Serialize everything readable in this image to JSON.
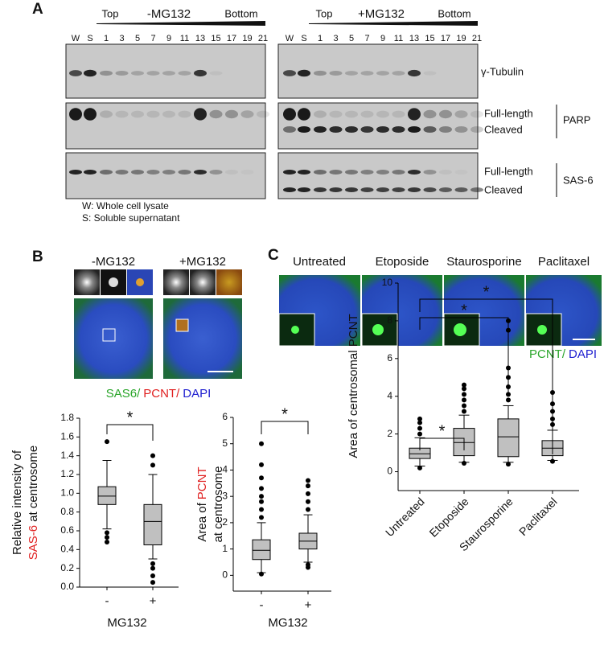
{
  "panel_a": {
    "label": "A",
    "left": {
      "top": "Top",
      "title": "-MG132",
      "bottom": "Bottom",
      "lanes": [
        "W",
        "S",
        "1",
        "3",
        "5",
        "7",
        "9",
        "11",
        "13",
        "15",
        "17",
        "19",
        "21"
      ]
    },
    "right": {
      "top": "Top",
      "title": "+MG132",
      "bottom": "Bottom",
      "lanes": [
        "W",
        "S",
        "1",
        "3",
        "5",
        "7",
        "9",
        "11",
        "13",
        "15",
        "17",
        "19",
        "21"
      ]
    },
    "tubulin": "γ-Tubulin",
    "parp": {
      "full": "Full-length",
      "cleaved": "Cleaved",
      "name": "PARP"
    },
    "sas6": {
      "full": "Full-length",
      "cleaved": "Cleaved",
      "name": "SAS-6"
    },
    "legend": [
      "W: Whole cell lysate",
      "S: Soluble supernatant"
    ]
  },
  "panel_b": {
    "label": "B",
    "conditions": [
      "-MG132",
      "+MG132"
    ],
    "stain": [
      "SAS6/",
      "PCNT/",
      "DAPI"
    ]
  },
  "panel_c": {
    "label": "C",
    "conditions": [
      "Untreated",
      "Etoposide",
      "Staurosporine",
      "Paclitaxel"
    ],
    "stain": [
      "PCNT/",
      "DAPI"
    ]
  },
  "chart_data": [
    {
      "type": "box",
      "y_label": {
        "line1": "Relative intensity of",
        "highlight": "SAS-6",
        "rest": "at centrosome"
      },
      "x_label": "MG132",
      "categories": [
        "-",
        "+"
      ],
      "color": "#c0c0c0",
      "boxes": [
        {
          "whislo": 0.62,
          "q1": 0.88,
          "med": 0.97,
          "q3": 1.07,
          "whishi": 1.35,
          "fliers": [
            1.55,
            0.58,
            0.53,
            0.48
          ]
        },
        {
          "whislo": 0.3,
          "q1": 0.45,
          "med": 0.7,
          "q3": 0.88,
          "whishi": 1.2,
          "fliers": [
            1.4,
            1.3,
            0.25,
            0.2,
            0.12,
            0.05
          ]
        }
      ],
      "ylim": [
        0,
        1.8
      ],
      "yticks": [
        {
          "value": 0,
          "label": "0.0"
        },
        0.2,
        0.4,
        0.6,
        0.8,
        {
          "value": 1,
          "label": "1.0"
        },
        1.2,
        1.4,
        1.6,
        1.8
      ],
      "significance": [
        "*"
      ]
    },
    {
      "type": "box",
      "y_label": {
        "line1": "Area of",
        "highlight": "PCNT",
        "rest": "at centrosome"
      },
      "x_label": "MG132",
      "categories": [
        "-",
        "+"
      ],
      "color": "#c0c0c0",
      "boxes": [
        {
          "whislo": 0.1,
          "q1": 0.6,
          "med": 0.95,
          "q3": 1.35,
          "whishi": 2.0,
          "fliers": [
            2.2,
            2.5,
            2.8,
            3.0,
            3.3,
            3.7,
            4.2,
            5.0,
            0.05
          ]
        },
        {
          "whislo": 0.5,
          "q1": 1.0,
          "med": 1.3,
          "q3": 1.6,
          "whishi": 2.3,
          "fliers": [
            2.5,
            2.8,
            3.1,
            3.4,
            3.6,
            0.4,
            0.3
          ]
        }
      ],
      "ylim": [
        -0.6,
        6
      ],
      "yticks": [
        0,
        1,
        2,
        3,
        4,
        5,
        6
      ],
      "significance": [
        "*"
      ]
    },
    {
      "type": "box",
      "y_label": {
        "line1": "Area of centrosomal PCNT"
      },
      "categories": [
        "Untreated",
        "Etoposide",
        "Staurosporine",
        "Paclitaxel"
      ],
      "color": "#c0c0c0",
      "boxes": [
        {
          "whislo": 0.3,
          "q1": 0.7,
          "med": 0.95,
          "q3": 1.25,
          "whishi": 1.8,
          "fliers": [
            2.0,
            2.3,
            2.6,
            2.8,
            0.2
          ]
        },
        {
          "whislo": 0.5,
          "q1": 0.85,
          "med": 1.55,
          "q3": 2.3,
          "whishi": 3.0,
          "fliers": [
            3.2,
            3.5,
            3.8,
            4.1,
            4.4,
            4.6,
            0.45
          ]
        },
        {
          "whislo": 0.5,
          "q1": 0.8,
          "med": 1.85,
          "q3": 2.8,
          "whishi": 3.5,
          "fliers": [
            3.8,
            4.1,
            4.5,
            5.0,
            5.5,
            7.5,
            8.0,
            0.4
          ]
        },
        {
          "whislo": 0.6,
          "q1": 0.85,
          "med": 1.25,
          "q3": 1.65,
          "whishi": 2.2,
          "fliers": [
            2.5,
            2.8,
            3.2,
            3.6,
            4.2,
            0.55
          ]
        }
      ],
      "ylim": [
        -1,
        10
      ],
      "yticks": [
        0,
        2,
        4,
        6,
        8,
        10
      ],
      "significance": [
        "*",
        "*",
        "*"
      ]
    }
  ]
}
